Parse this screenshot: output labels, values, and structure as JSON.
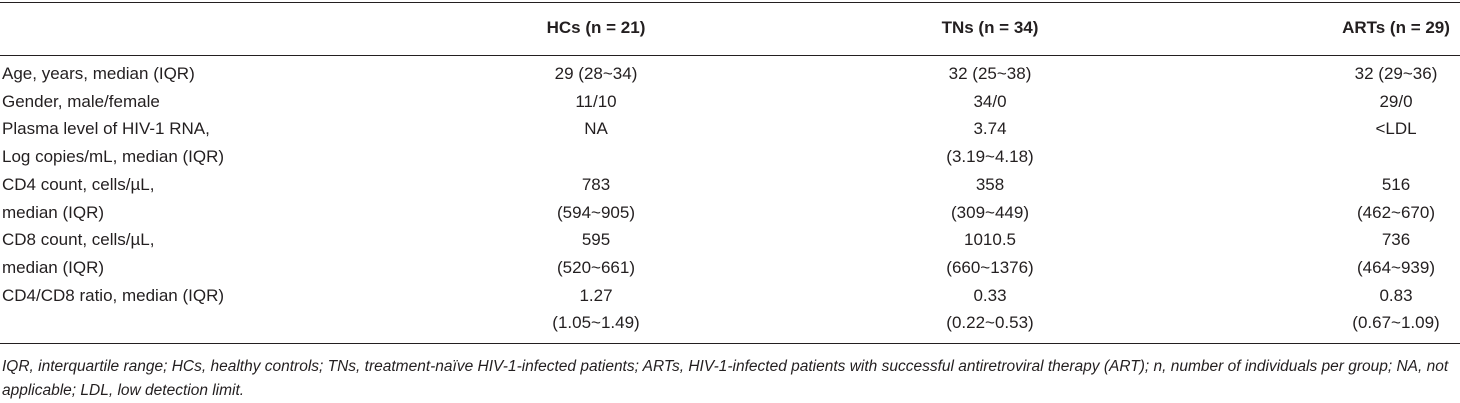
{
  "table": {
    "header": [
      "HCs (n = 21)",
      "TNs (n = 34)",
      "ARTs (n = 29)"
    ],
    "rows": [
      {
        "label": [
          "Age, years, median (IQR)"
        ],
        "values": [
          [
            "29 (28~34)"
          ],
          [
            "32 (25~38)"
          ],
          [
            "32 (29~36)"
          ]
        ]
      },
      {
        "label": [
          "Gender, male/female"
        ],
        "values": [
          [
            "11/10"
          ],
          [
            "34/0"
          ],
          [
            "29/0"
          ]
        ]
      },
      {
        "label": [
          "Plasma level of HIV-1 RNA,",
          "Log copies/mL, median (IQR)"
        ],
        "values": [
          [
            "NA"
          ],
          [
            "3.74",
            "(3.19~4.18)"
          ],
          [
            "<LDL"
          ]
        ]
      },
      {
        "label": [
          "CD4 count, cells/µL,",
          "median (IQR)"
        ],
        "values": [
          [
            "783",
            "(594~905)"
          ],
          [
            "358",
            "(309~449)"
          ],
          [
            "516",
            "(462~670)"
          ]
        ]
      },
      {
        "label": [
          "CD8 count, cells/µL,",
          "median (IQR)"
        ],
        "values": [
          [
            "595",
            "(520~661)"
          ],
          [
            "1010.5",
            "(660~1376)"
          ],
          [
            "736",
            "(464~939)"
          ]
        ]
      },
      {
        "label": [
          "CD4/CD8 ratio, median (IQR)"
        ],
        "values": [
          [
            "1.27",
            "(1.05~1.49)"
          ],
          [
            "0.33",
            "(0.22~0.53)"
          ],
          [
            "0.83",
            "(0.67~1.09)"
          ]
        ]
      }
    ]
  },
  "footnote": "IQR, interquartile range; HCs, healthy controls; TNs, treatment-naïve HIV-1-infected patients; ARTs, HIV-1-infected patients with successful antiretroviral therapy (ART); n, number of individuals per group; NA, not applicable; LDL, low detection limit."
}
